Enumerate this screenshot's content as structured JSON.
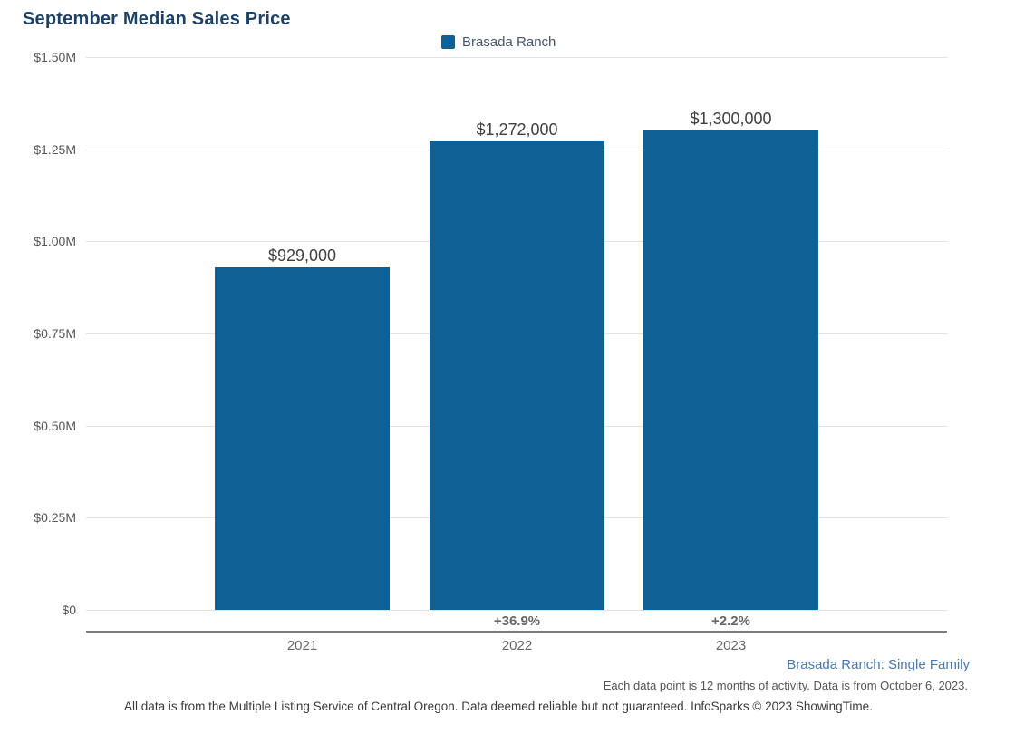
{
  "title": "September Median Sales Price",
  "legend": {
    "label": "Brasada Ranch",
    "swatch_color": "#0f6095"
  },
  "colors": {
    "bar": "#0f6095",
    "title": "#1e4164",
    "gridline": "#e2e2e2",
    "axis_line": "#7c7c7c",
    "tick_label": "#555555",
    "value_label": "#3f3f3f",
    "pct_label": "#666666",
    "year_label": "#666666",
    "footnote_series": "#4878ad",
    "footnote_period": "#555555",
    "footnote_disclaimer": "#3a3a3a"
  },
  "chart_data": {
    "type": "bar",
    "title": "September Median Sales Price",
    "series": [
      {
        "name": "Brasada Ranch",
        "values": [
          929000,
          1272000,
          1300000
        ],
        "value_labels": [
          "$929,000",
          "$1,272,000",
          "$1,300,000"
        ],
        "pct_change_labels": [
          "",
          "+36.9%",
          "+2.2%"
        ]
      }
    ],
    "categories": [
      "2021",
      "2022",
      "2023"
    ],
    "ylim": [
      0,
      1500000
    ],
    "yticks": [
      {
        "value": 0,
        "label": "$0"
      },
      {
        "value": 250000,
        "label": "$0.25M"
      },
      {
        "value": 500000,
        "label": "$0.50M"
      },
      {
        "value": 750000,
        "label": "$0.75M"
      },
      {
        "value": 1000000,
        "label": "$1.00M"
      },
      {
        "value": 1250000,
        "label": "$1.25M"
      },
      {
        "value": 1500000,
        "label": "$1.50M"
      }
    ],
    "grid": true,
    "legend_position": "top-center"
  },
  "footnotes": {
    "series": "Brasada Ranch: Single Family",
    "period": "Each data point is 12 months of activity. Data is from October 6, 2023.",
    "disclaimer": "All data is from the Multiple Listing Service of Central Oregon. Data deemed reliable but not guaranteed. InfoSparks © 2023 ShowingTime."
  }
}
